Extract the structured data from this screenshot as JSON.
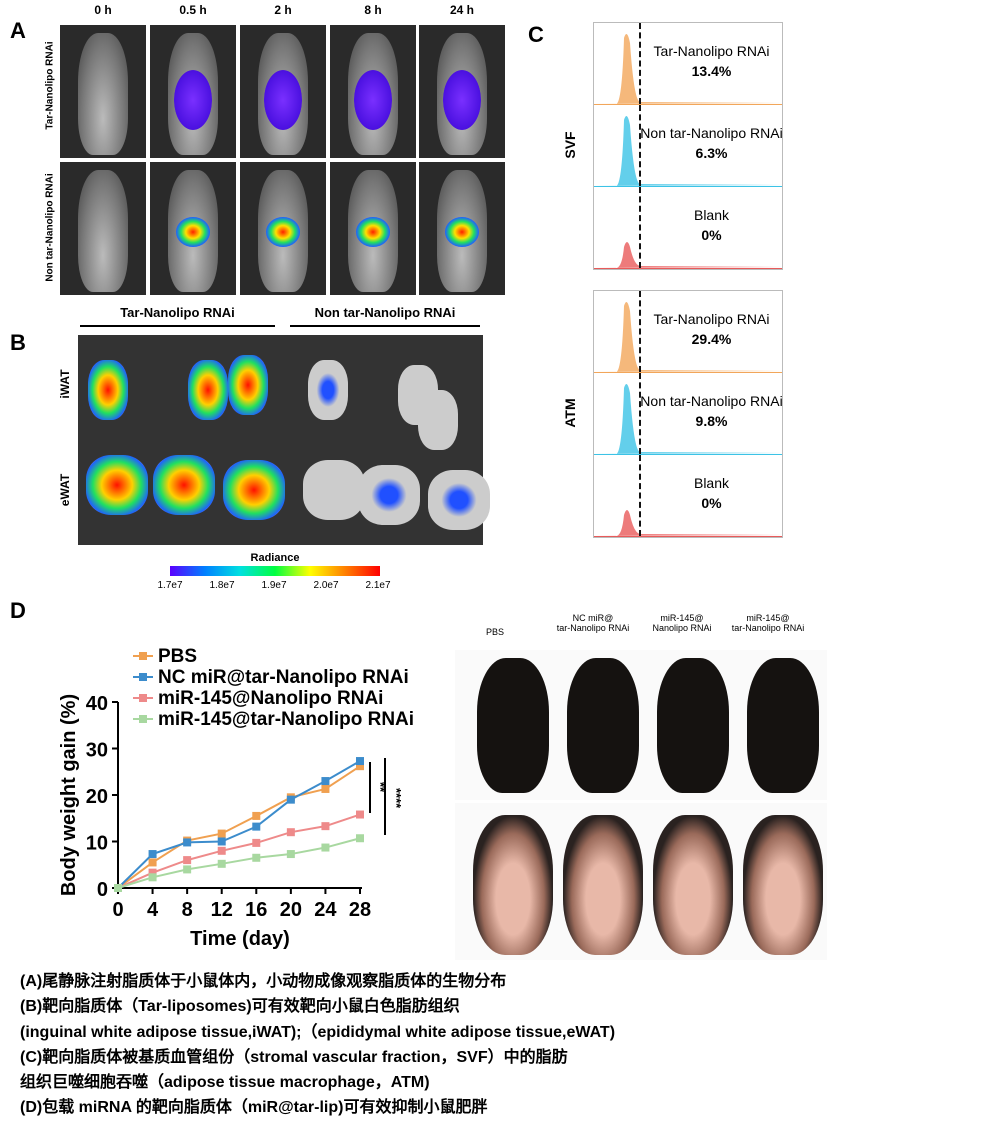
{
  "panel_labels": {
    "a": "A",
    "b": "B",
    "c": "C",
    "d": "D"
  },
  "panel_a": {
    "timepoints": [
      "0 h",
      "0.5 h",
      "2 h",
      "8 h",
      "24 h"
    ],
    "rows": [
      "Tar-Nanolipo RNAi",
      "Non tar-Nanolipo RNAi"
    ]
  },
  "panel_b": {
    "groups": [
      "Tar-Nanolipo RNAi",
      "Non tar-Nanolipo RNAi"
    ],
    "tissues": [
      "iWAT",
      "eWAT"
    ],
    "colorbar": {
      "title": "Radiance",
      "ticks": [
        "1.7e7",
        "1.8e7",
        "1.9e7",
        "2.0e7",
        "2.1e7"
      ]
    }
  },
  "panel_c": {
    "blocks": [
      {
        "name": "SVF",
        "rows": [
          {
            "label": "Tar-Nanolipo RNAi",
            "value": "13.4%",
            "color": "#f2a65a"
          },
          {
            "label": "Non tar-Nanolipo RNAi",
            "value": "6.3%",
            "color": "#3cc3e6"
          },
          {
            "label": "Blank",
            "value": "0%",
            "color": "#e85a5a"
          }
        ]
      },
      {
        "name": "ATM",
        "rows": [
          {
            "label": "Tar-Nanolipo RNAi",
            "value": "29.4%",
            "color": "#f2a65a"
          },
          {
            "label": "Non tar-Nanolipo RNAi",
            "value": "9.8%",
            "color": "#3cc3e6"
          },
          {
            "label": "Blank",
            "value": "0%",
            "color": "#e85a5a"
          }
        ]
      }
    ]
  },
  "panel_d": {
    "photo_labels": [
      "PBS",
      "NC miR@\ntar-Nanolipo RNAi",
      "miR-145@\nNanolipo RNAi",
      "miR-145@\ntar-Nanolipo RNAi"
    ]
  },
  "chart_data": {
    "type": "line",
    "xlabel": "Time (day)",
    "ylabel": "Body weight gain (%)",
    "xlim": [
      0,
      28
    ],
    "ylim": [
      0,
      40
    ],
    "x": [
      0,
      4,
      8,
      12,
      16,
      20,
      24,
      28
    ],
    "xticks": [
      "0",
      "4",
      "8",
      "12",
      "16",
      "20",
      "24",
      "28"
    ],
    "yticks": [
      "0",
      "10",
      "20",
      "30",
      "40"
    ],
    "legend": "top-left",
    "series": [
      {
        "name": "PBS",
        "color": "#f0a050",
        "marker": "diamond",
        "values": [
          0,
          5.5,
          10.2,
          11.7,
          15.5,
          19.5,
          21.3,
          26.2
        ]
      },
      {
        "name": "NC miR@tar-Nanolipo RNAi",
        "color": "#3c8ccc",
        "marker": "square",
        "values": [
          0,
          7.3,
          9.8,
          10,
          13.2,
          19,
          23,
          27.3
        ]
      },
      {
        "name": "miR-145@Nanolipo RNAi",
        "color": "#ee8a8a",
        "marker": "triangle",
        "values": [
          0,
          3.3,
          6,
          8,
          9.7,
          12,
          13.3,
          15.8
        ]
      },
      {
        "name": "miR-145@tar-Nanolipo RNAi",
        "color": "#a8d8a0",
        "marker": "triangle-down",
        "values": [
          0,
          2.3,
          4,
          5.2,
          6.5,
          7.3,
          8.7,
          10.7
        ]
      }
    ],
    "annotations": [
      "**",
      "****"
    ]
  },
  "captions": [
    "(A)尾静脉注射脂质体于小鼠体内，小动物成像观察脂质体的生物分布",
    "(B)靶向脂质体（Tar-liposomes)可有效靶向小鼠白色脂肪组织",
    "(inguinal white adipose tissue,iWAT);（epididymal white adipose tissue,eWAT)",
    "(C)靶向脂质体被基质血管组份（stromal vascular fraction，SVF）中的脂肪",
    "组织巨噬细胞吞噬（adipose tissue macrophage，ATM)",
    "(D)包载 miRNA 的靶向脂质体（miR@tar-lip)可有效抑制小鼠肥胖"
  ]
}
